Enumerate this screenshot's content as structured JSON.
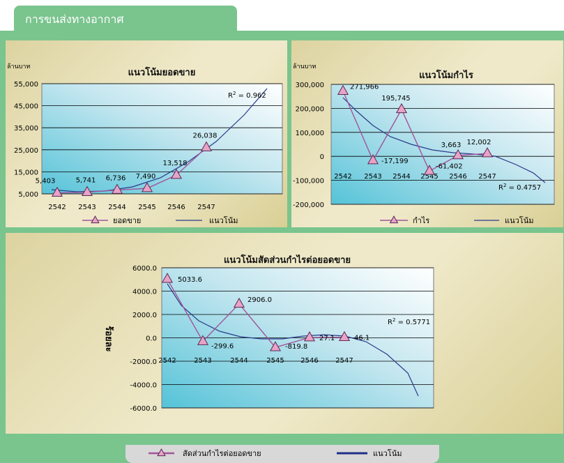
{
  "header": {
    "title": "การขนส่งทางอากาศ"
  },
  "colors": {
    "tab": "#7ac48e",
    "series_line": "#a0559a",
    "marker_fill": "#e8a3c6",
    "trend_line": "#2a3a8a",
    "legend_trend_line": "#1e2f86"
  },
  "chart_data": [
    {
      "type": "line",
      "title": "แนวโน้มยอดขาย",
      "ylabel": "ล้านบาท",
      "categories": [
        "2542",
        "2543",
        "2544",
        "2545",
        "2546",
        "2547"
      ],
      "y_ticks": [
        "55,000",
        "45,000",
        "35,000",
        "25,000",
        "15,000",
        "5,000"
      ],
      "ylim": [
        5000,
        55000
      ],
      "series": [
        {
          "name": "ยอดขาย",
          "values": [
            5403,
            5741,
            6736,
            7490,
            13518,
            26038
          ],
          "labels": [
            "5,403",
            "5,741",
            "6,736",
            "7,490",
            "13,518",
            "26,038"
          ]
        },
        {
          "name": "แนวโน้ม",
          "type": "polynomial trendline"
        }
      ],
      "annotation": {
        "r2_prefix": "R",
        "r2_value": " = 0.962"
      },
      "legend": "bottom"
    },
    {
      "type": "line",
      "title": "แนวโน้มกำไร",
      "ylabel": "ล้านบาท",
      "categories": [
        "2542",
        "2543",
        "2544",
        "2545",
        "2546",
        "2547"
      ],
      "y_ticks": [
        "300,000",
        "200,000",
        "100,000",
        "0",
        "-100,000",
        "-200,000"
      ],
      "ylim": [
        -200000,
        300000
      ],
      "series": [
        {
          "name": "กำไร",
          "values": [
            271966,
            -17199,
            195745,
            -61402,
            3663,
            12002
          ],
          "labels": [
            "271,966",
            "-17,199",
            "195,745",
            "-61,402",
            "3,663",
            "12,002"
          ]
        },
        {
          "name": "แนวโน้ม",
          "type": "polynomial trendline"
        }
      ],
      "annotation": {
        "r2_prefix": "R",
        "r2_value": " = 0.4757"
      },
      "legend": "bottom"
    },
    {
      "type": "line",
      "title": "แนวโน้มสัดส่วนกำไรต่อยอดขาย",
      "ylabel": "ร้อยละ",
      "categories": [
        "2542",
        "2543",
        "2544",
        "2545",
        "2546",
        "2547"
      ],
      "y_ticks": [
        "6000.0",
        "4000.0",
        "2000.0",
        "0.0",
        "-2000.0",
        "-4000.0",
        "-6000.0"
      ],
      "ylim": [
        -6000,
        6000
      ],
      "series": [
        {
          "name": "สัดส่วนกำไรต่อยอดขาย",
          "values": [
            5033.6,
            -299.6,
            2906.0,
            -819.8,
            27.1,
            46.1
          ],
          "labels": [
            "5033.6",
            "-299.6",
            "2906.0",
            "-819.8",
            "27.1",
            "46.1"
          ]
        },
        {
          "name": "แนวโน้ม",
          "type": "polynomial trendline"
        }
      ],
      "annotation": {
        "r2_prefix": "R",
        "r2_value": " = 0.5771"
      },
      "legend": "bottom"
    }
  ]
}
